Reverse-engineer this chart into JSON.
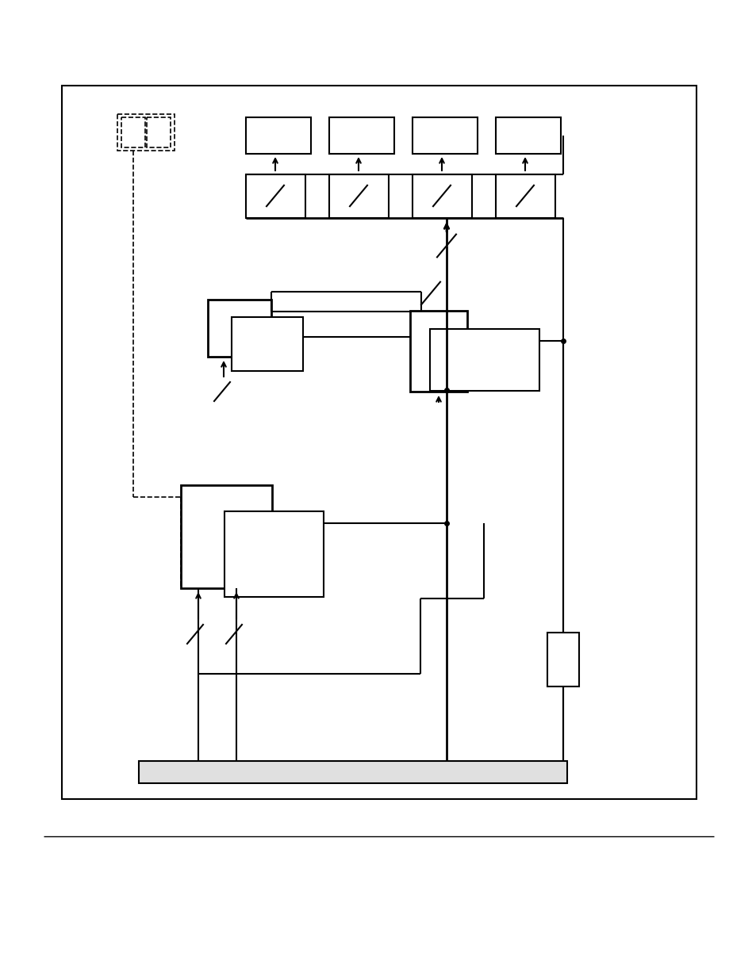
{
  "fig_width": 9.54,
  "fig_height": 12.35,
  "bg_color": "#ffffff",
  "lc": "#000000"
}
